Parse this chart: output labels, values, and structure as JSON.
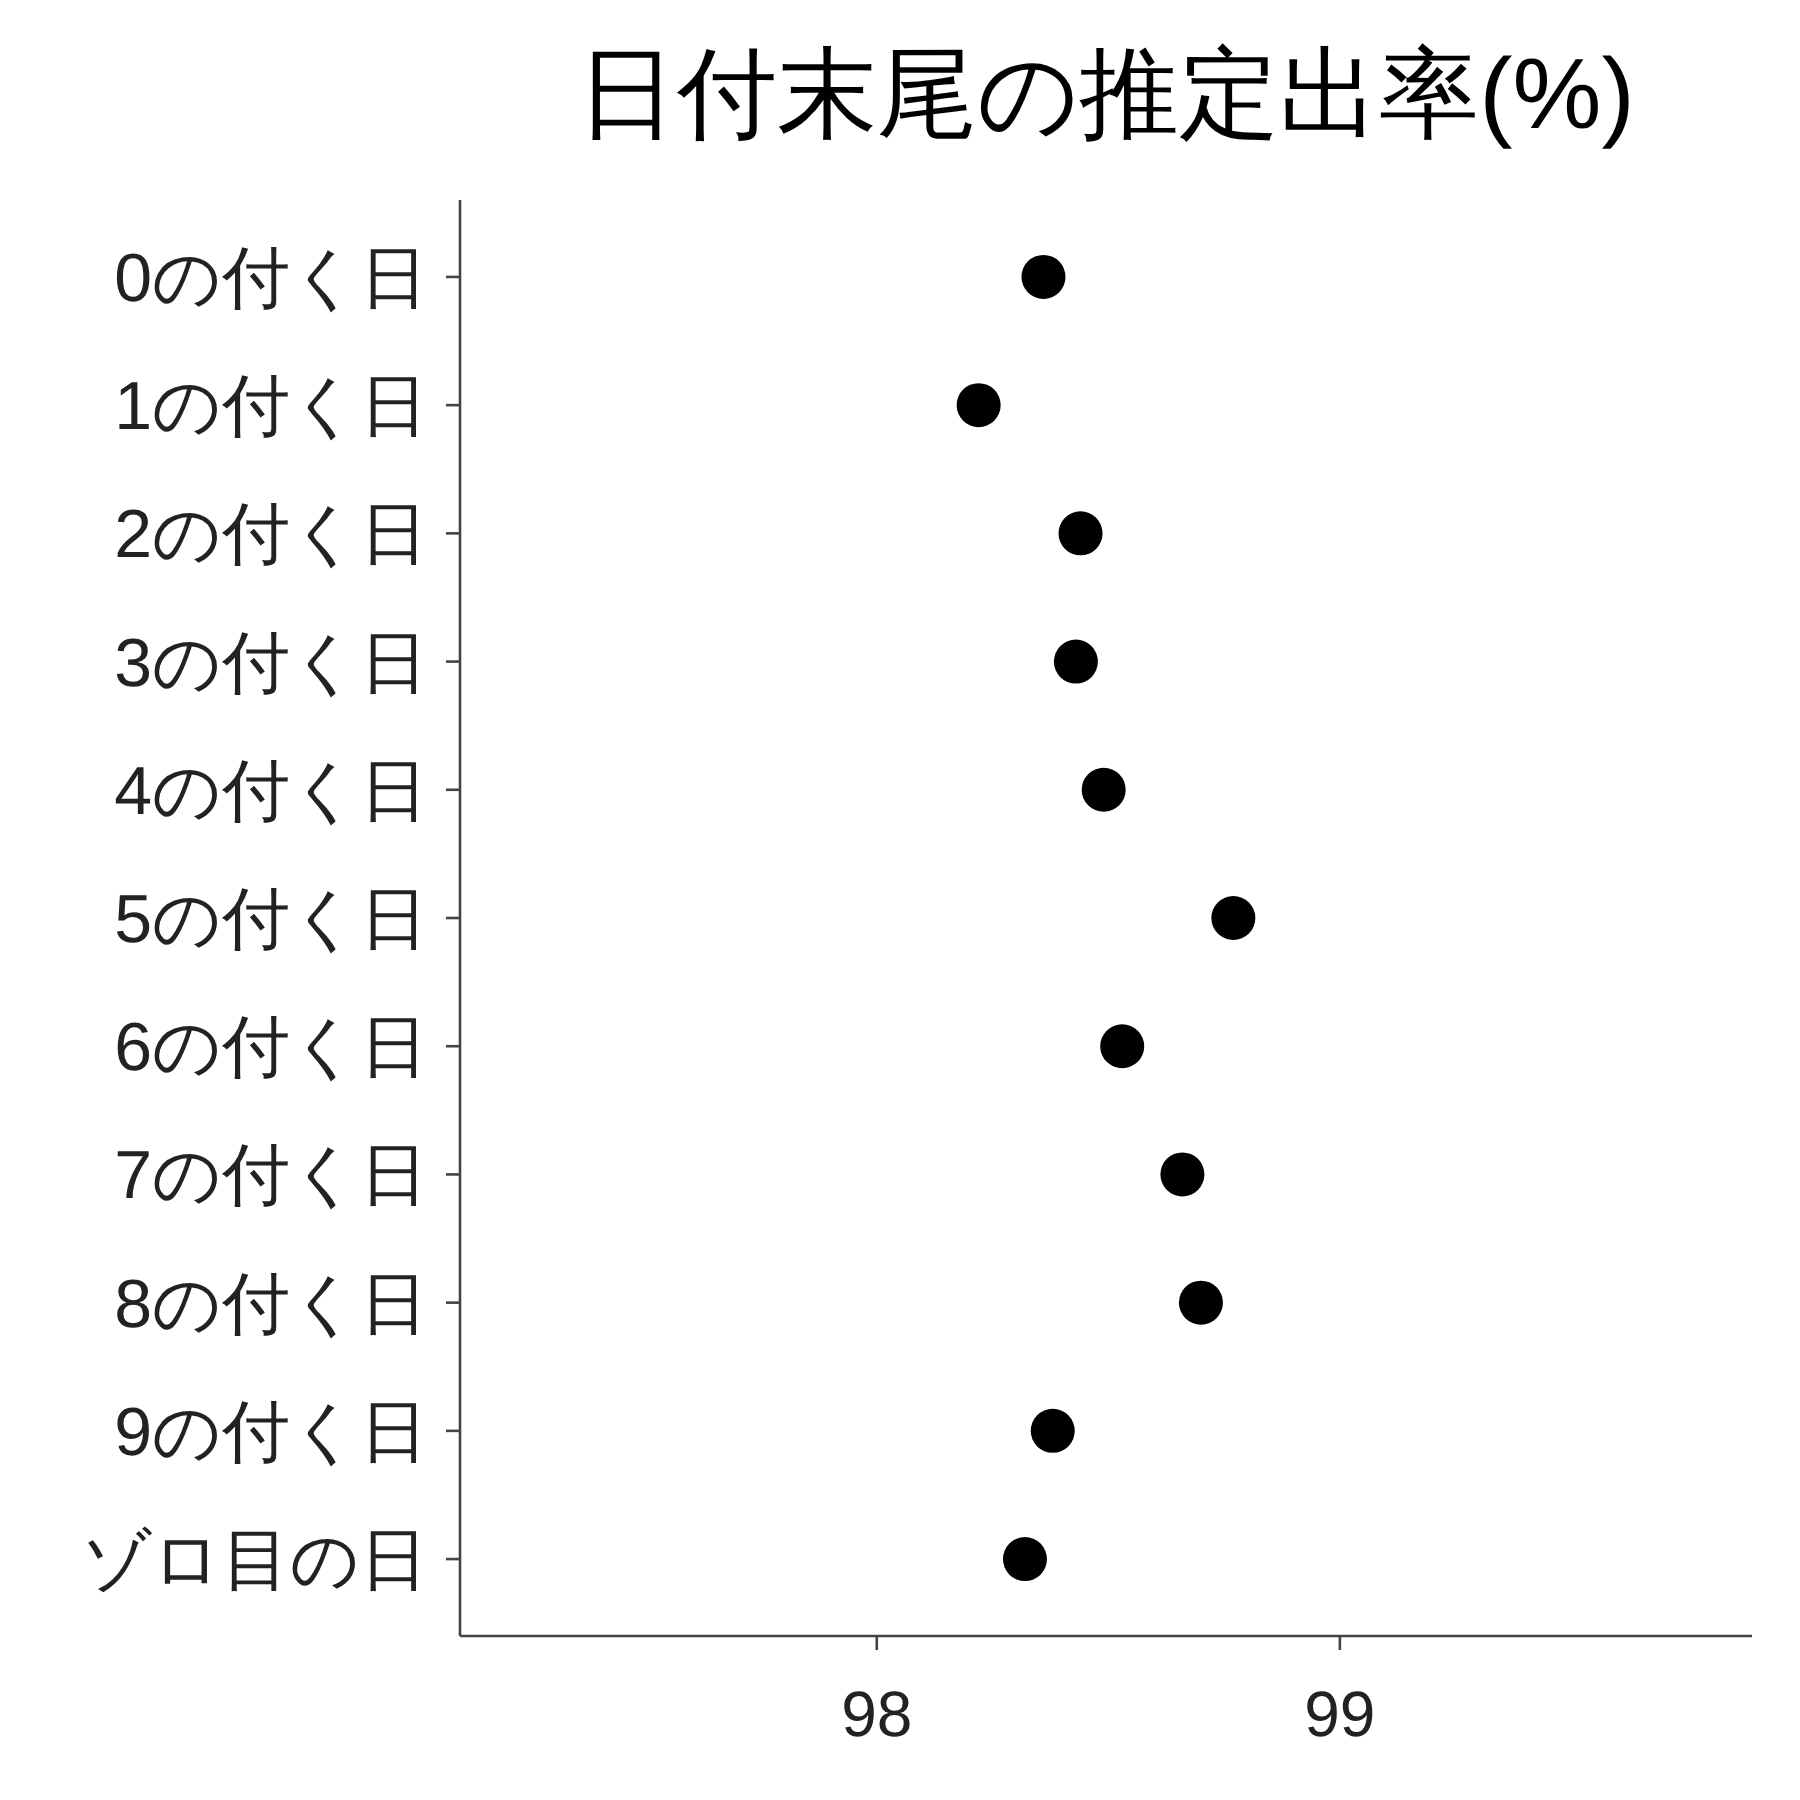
{
  "chart_data": {
    "type": "scatter",
    "orientation": "horizontal",
    "title": "日付末尾の推定出率(%)",
    "categories": [
      "0の付く日",
      "1の付く日",
      "2の付く日",
      "3の付く日",
      "4の付く日",
      "5の付く日",
      "6の付く日",
      "7の付く日",
      "8の付く日",
      "9の付く日",
      "ゾロ目の日"
    ],
    "values": [
      98.36,
      98.22,
      98.44,
      98.43,
      98.49,
      98.77,
      98.53,
      98.66,
      98.7,
      98.38,
      98.32
    ],
    "color": "#000000",
    "marker": "circle",
    "xlim": [
      97.1,
      99.89
    ],
    "xticks": [
      98,
      99
    ],
    "grid": false
  }
}
